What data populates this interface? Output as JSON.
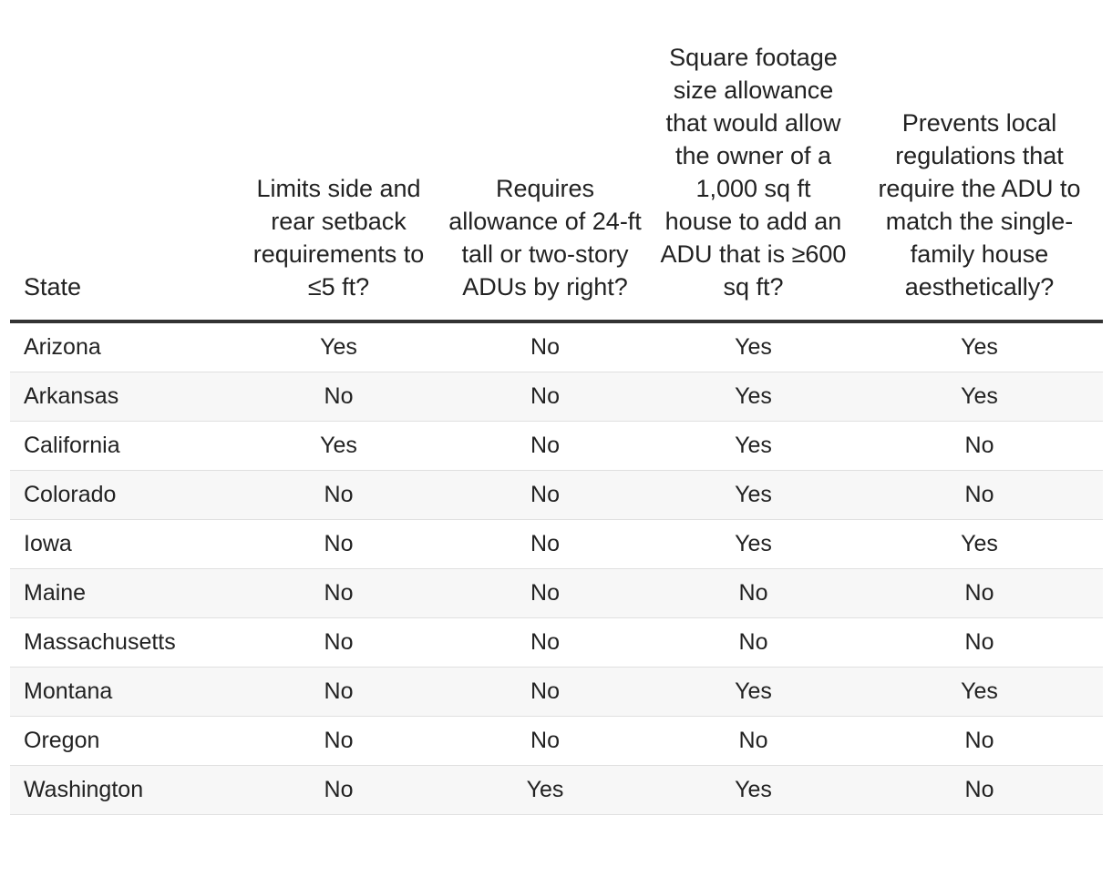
{
  "table": {
    "headers": [
      "State",
      "Limits side and rear setback requirements to ≤5 ft?",
      "Requires allowance of 24-ft tall or two-story ADUs by right?",
      "Square footage size allowance that would allow the owner of a 1,000 sq ft house to add an ADU that is ≥600 sq ft?",
      "Prevents local regulations that require the ADU to match the single-family house aesthetically?"
    ],
    "rows": [
      [
        "Arizona",
        "Yes",
        "No",
        "Yes",
        "Yes"
      ],
      [
        "Arkansas",
        "No",
        "No",
        "Yes",
        "Yes"
      ],
      [
        "California",
        "Yes",
        "No",
        "Yes",
        "No"
      ],
      [
        "Colorado",
        "No",
        "No",
        "Yes",
        "No"
      ],
      [
        "Iowa",
        "No",
        "No",
        "Yes",
        "Yes"
      ],
      [
        "Maine",
        "No",
        "No",
        "No",
        "No"
      ],
      [
        "Massachusetts",
        "No",
        "No",
        "No",
        "No"
      ],
      [
        "Montana",
        "No",
        "No",
        "Yes",
        "Yes"
      ],
      [
        "Oregon",
        "No",
        "No",
        "No",
        "No"
      ],
      [
        "Washington",
        "No",
        "Yes",
        "Yes",
        "No"
      ]
    ]
  },
  "colors": {
    "header_rule": "#333333",
    "row_divider": "#e0e0e0",
    "alt_row_bg": "#f7f7f7",
    "text": "#222222"
  }
}
